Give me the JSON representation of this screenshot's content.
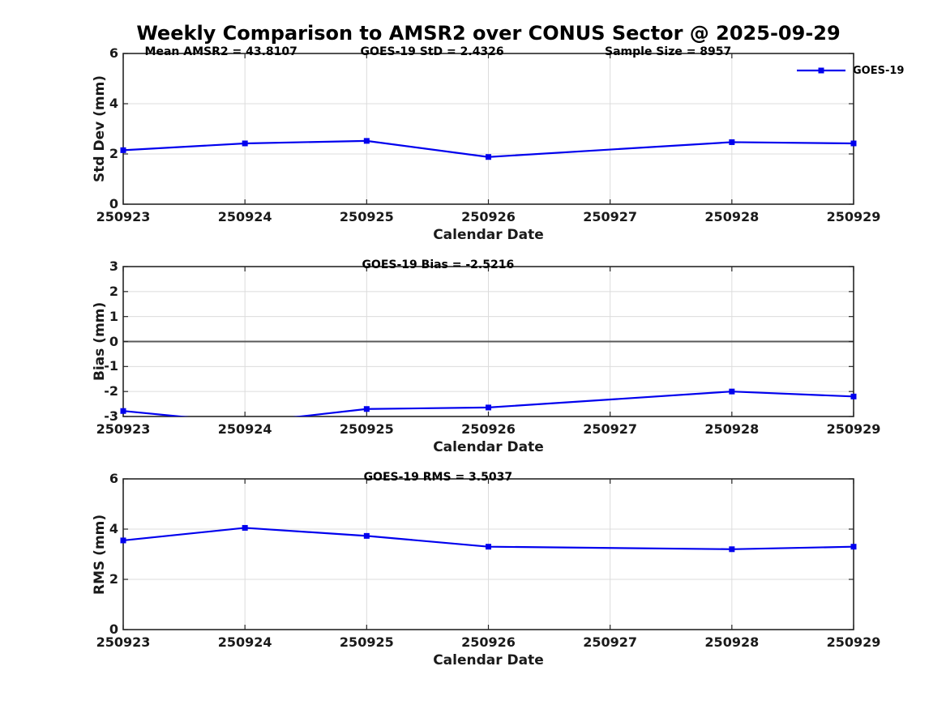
{
  "title": "Weekly Comparison to AMSR2 over CONUS Sector @ 2025-09-29",
  "legend": {
    "series_label": "GOES-19",
    "marker": "filled-square"
  },
  "colors": {
    "line": "#0000EE",
    "grid": "#DCDCDC",
    "axis": "#262626",
    "zero_line": "#595959",
    "tick_text": "#1a1a1a",
    "background": "#ffffff"
  },
  "chart_data": [
    {
      "type": "line",
      "panel": "std-dev",
      "annotations": [
        "Mean AMSR2 = 43.8107",
        "GOES-19 StD = 2.4326",
        "Sample Size = 8957"
      ],
      "x": [
        "250923",
        "250924",
        "250925",
        "250926",
        "250927",
        "250928",
        "250929"
      ],
      "xlabel": "Calendar Date",
      "ylabel": "Std Dev (mm)",
      "ylim": [
        0,
        6
      ],
      "yticks": [
        6,
        4,
        2,
        0
      ],
      "grid": true,
      "zero_line": false,
      "legend": "GOES-19",
      "series": [
        {
          "name": "GOES-19",
          "values": [
            2.15,
            2.42,
            2.52,
            1.88,
            null,
            2.47,
            2.42
          ]
        }
      ]
    },
    {
      "type": "line",
      "panel": "bias",
      "annotations": [
        "GOES-19 Bias  = -2.5216"
      ],
      "x": [
        "250923",
        "250924",
        "250925",
        "250926",
        "250927",
        "250928",
        "250929"
      ],
      "xlabel": "Calendar Date",
      "ylabel": "Bias (mm)",
      "ylim": [
        -3,
        3
      ],
      "yticks": [
        3,
        2,
        1,
        0,
        -1,
        -2,
        -3
      ],
      "grid": true,
      "zero_line": true,
      "series": [
        {
          "name": "GOES-19",
          "values": [
            -2.78,
            -3.25,
            -2.7,
            -2.64,
            null,
            -2.0,
            -2.2
          ]
        }
      ]
    },
    {
      "type": "line",
      "panel": "rms",
      "annotations": [
        "GOES-19 RMS = 3.5037"
      ],
      "x": [
        "250923",
        "250924",
        "250925",
        "250926",
        "250927",
        "250928",
        "250929"
      ],
      "xlabel": "Calendar Date",
      "ylabel": "RMS (mm)",
      "ylim": [
        0,
        6
      ],
      "yticks": [
        6,
        4,
        2,
        0
      ],
      "grid": true,
      "zero_line": false,
      "series": [
        {
          "name": "GOES-19",
          "values": [
            3.55,
            4.05,
            3.73,
            3.3,
            null,
            3.2,
            3.3
          ]
        }
      ]
    }
  ]
}
